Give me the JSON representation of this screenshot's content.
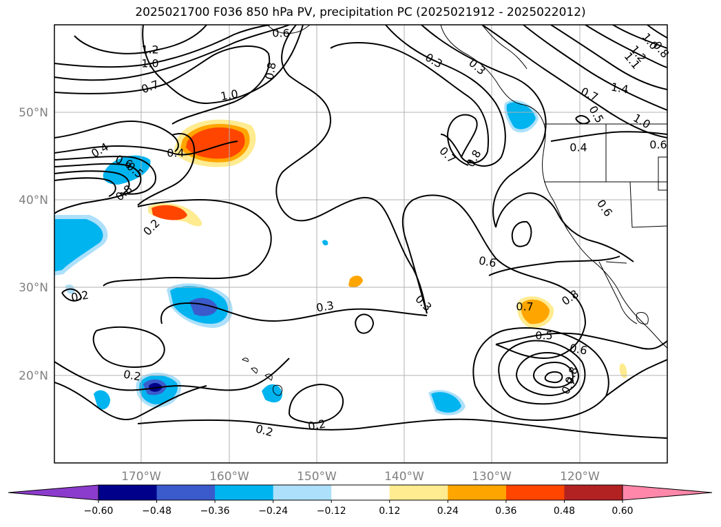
{
  "title": "2025021700 F036 850 hPa PV, precipitation PC (2025021912 - 2025022012)",
  "map": {
    "lat_labels": [
      "50°N",
      "40°N",
      "30°N",
      "20°N"
    ],
    "lon_labels": [
      "170°W",
      "160°W",
      "150°W",
      "140°W",
      "130°W",
      "120°W"
    ]
  },
  "colorbar": {
    "extend": "both",
    "colors": [
      "#8c3ccc",
      "#00008b",
      "#3b5bcc",
      "#00b4f0",
      "#ade0fa",
      "#ffffff",
      "#ffeb90",
      "#ffa500",
      "#ff4500",
      "#b22222",
      "#ff88aa"
    ],
    "tick_labels": [
      "−0.60",
      "−0.48",
      "−0.36",
      "−0.24",
      "−0.12",
      "0.12",
      "0.24",
      "0.36",
      "0.48",
      "0.60"
    ]
  },
  "contour_labels": [
    {
      "text": "1.2"
    },
    {
      "text": "1.0"
    },
    {
      "text": "0.7"
    },
    {
      "text": "1.0"
    },
    {
      "text": "0.8"
    },
    {
      "text": "0.6"
    },
    {
      "text": "0.4"
    },
    {
      "text": "0.4"
    },
    {
      "text": "0.6"
    },
    {
      "text": "0.5"
    },
    {
      "text": "0.8"
    },
    {
      "text": "0.2"
    },
    {
      "text": "0.2"
    },
    {
      "text": "0.3"
    },
    {
      "text": "0.2"
    },
    {
      "text": "0.2"
    },
    {
      "text": "0.2"
    },
    {
      "text": "0.3"
    },
    {
      "text": "0.6"
    },
    {
      "text": "0.3"
    },
    {
      "text": "0.7"
    },
    {
      "text": "0.8"
    },
    {
      "text": "1.4"
    },
    {
      "text": "0.7"
    },
    {
      "text": "0.5"
    },
    {
      "text": "1.0"
    },
    {
      "text": "0.4"
    },
    {
      "text": "0.6"
    },
    {
      "text": "0.3"
    },
    {
      "text": "0.6"
    },
    {
      "text": "0.7"
    },
    {
      "text": "0.8"
    },
    {
      "text": "0.5"
    },
    {
      "text": "0.6"
    },
    {
      "text": "0.8"
    },
    {
      "text": "0.7"
    },
    {
      "text": "1.2"
    },
    {
      "text": "1.0"
    },
    {
      "text": "0.8"
    },
    {
      "text": "1.1"
    }
  ]
}
